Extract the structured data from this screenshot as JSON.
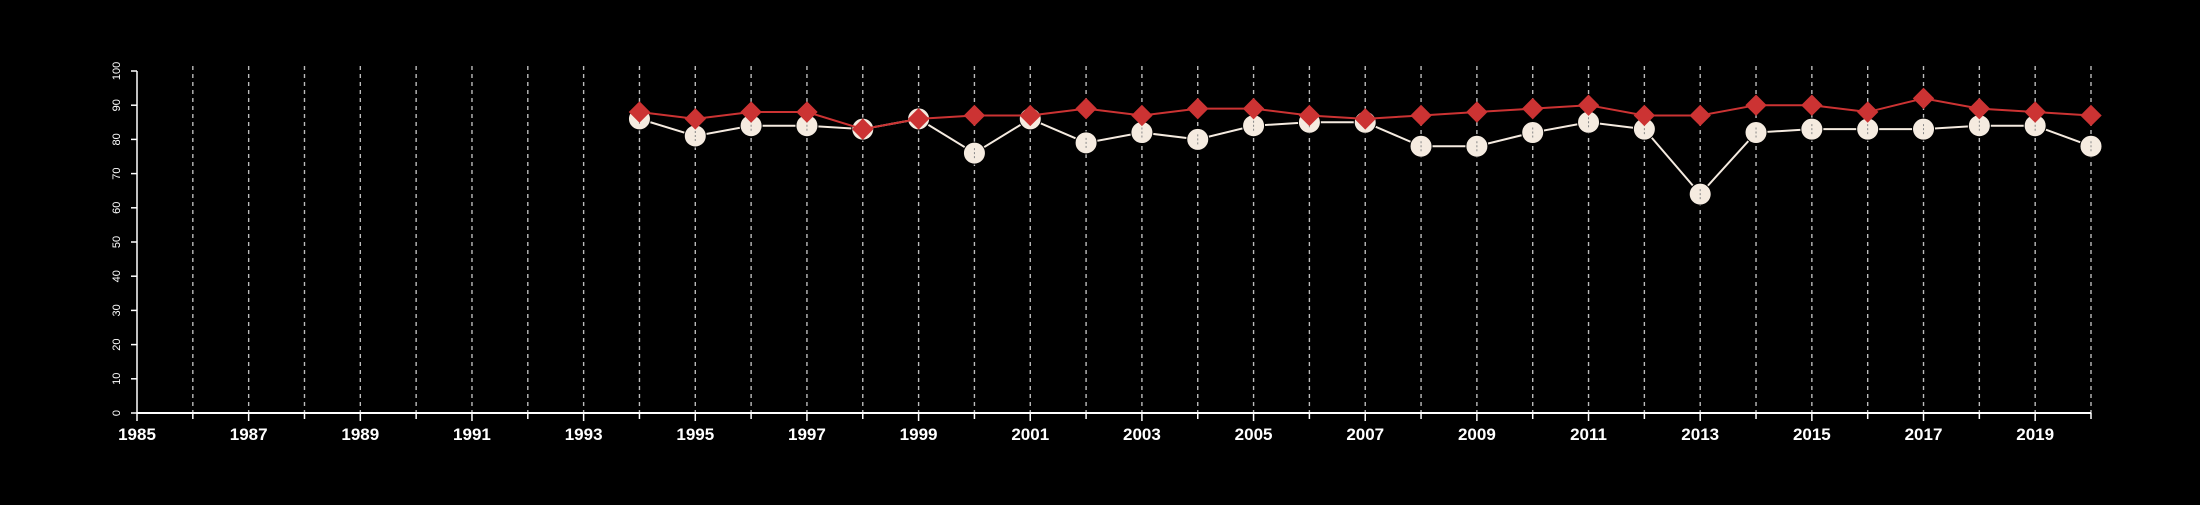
{
  "colors": {
    "background": "#000000",
    "axis": "#ffffff",
    "grid": "#bbbbbb",
    "white_series_line": "#f5ebe0",
    "white_series_marker": "#f5ebe0",
    "red_series": "#cc3333"
  },
  "chart_data": {
    "type": "line",
    "title": "",
    "xlabel": "",
    "ylabel": "",
    "xlim": [
      1985,
      2020
    ],
    "ylim": [
      0,
      100
    ],
    "y_ticks": [
      0,
      10,
      20,
      30,
      40,
      50,
      60,
      70,
      80,
      90,
      100
    ],
    "x_tick_labels": [
      "1985",
      "1987",
      "1989",
      "1991",
      "1993",
      "1995",
      "1997",
      "1999",
      "2001",
      "2003",
      "2005",
      "2007",
      "2009",
      "2011",
      "2013",
      "2015",
      "2017",
      "2019"
    ],
    "x_minor_ticks": [
      1986,
      1988,
      1990,
      1992,
      1994,
      1996,
      1998,
      2000,
      2002,
      2004,
      2006,
      2008,
      2010,
      2012,
      2014,
      2016,
      2018,
      2020
    ],
    "grid": "vertical dashed at every year",
    "legend": "none",
    "x": [
      1994,
      1995,
      1996,
      1997,
      1998,
      1999,
      2000,
      2001,
      2002,
      2003,
      2004,
      2005,
      2006,
      2007,
      2008,
      2009,
      2010,
      2011,
      2012,
      2013,
      2014,
      2015,
      2016,
      2017,
      2018,
      2019,
      2020
    ],
    "series": [
      {
        "marker": "circle",
        "color": "#f5ebe0",
        "values": [
          86,
          81,
          84,
          84,
          83,
          86,
          76,
          86,
          79,
          82,
          80,
          84,
          85,
          85,
          78,
          78,
          82,
          85,
          83,
          64,
          82,
          83,
          83,
          83,
          84,
          84,
          78
        ]
      },
      {
        "marker": "diamond",
        "color": "#cc3333",
        "values": [
          88,
          86,
          88,
          88,
          83,
          86,
          87,
          87,
          89,
          87,
          89,
          89,
          87,
          86,
          87,
          88,
          89,
          90,
          87,
          87,
          90,
          90,
          88,
          92,
          89,
          88,
          87
        ]
      }
    ]
  }
}
